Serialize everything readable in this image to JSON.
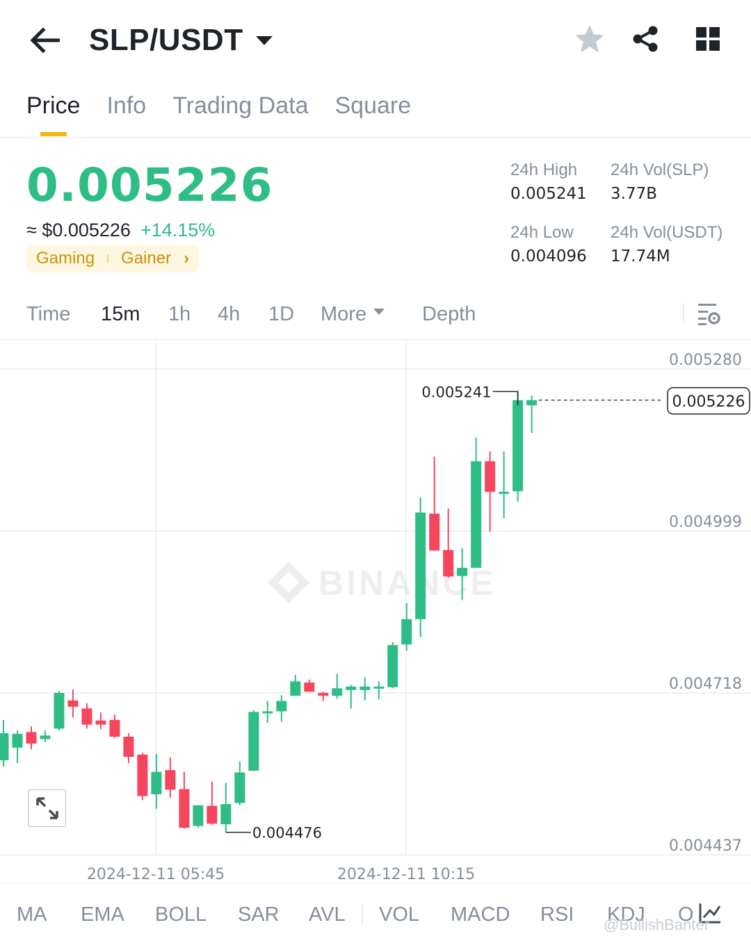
{
  "header": {
    "pair": "SLP/USDT",
    "icons": [
      "back-arrow-icon",
      "dropdown-caret-icon",
      "star-icon",
      "share-icon",
      "grid-icon"
    ]
  },
  "tabs": [
    {
      "label": "Price",
      "active": true
    },
    {
      "label": "Info",
      "active": false
    },
    {
      "label": "Trading Data",
      "active": false
    },
    {
      "label": "Square",
      "active": false
    }
  ],
  "price": {
    "last": "0.005226",
    "approx": "≈ $0.005226",
    "change": "+14.15%",
    "tags": [
      "Gaming",
      "Gainer"
    ]
  },
  "stats": {
    "high_label": "24h High",
    "high": "0.005241",
    "low_label": "24h Low",
    "low": "0.004096",
    "vol_base_label": "24h Vol(SLP)",
    "vol_base": "3.77B",
    "vol_quote_label": "24h Vol(USDT)",
    "vol_quote": "17.74M"
  },
  "intervals": {
    "time": "Time",
    "m15": "15m",
    "h1": "1h",
    "h4": "4h",
    "d1": "1D",
    "more": "More",
    "depth": "Depth",
    "active": "15m"
  },
  "chart_data": {
    "type": "candlestick",
    "interval": "15m",
    "y_ticks": [
      "0.005280",
      "0.004999",
      "0.004718",
      "0.004437"
    ],
    "y_tick_values": [
      0.00528,
      0.004999,
      0.004718,
      0.004437
    ],
    "x_ticks": [
      "2024-12-11 05:45",
      "2024-12-11 10:15"
    ],
    "ylim": [
      0.00438,
      0.0053
    ],
    "current_price": "0.005226",
    "high_marker": "0.005241",
    "low_marker": "0.004476",
    "watermark": "BINANCE",
    "candles": [
      {
        "o": 0.004601,
        "c": 0.004648,
        "h": 0.004671,
        "l": 0.00459
      },
      {
        "o": 0.004623,
        "c": 0.004647,
        "h": 0.004653,
        "l": 0.004596
      },
      {
        "o": 0.00465,
        "c": 0.00463,
        "h": 0.00466,
        "l": 0.00462
      },
      {
        "o": 0.004638,
        "c": 0.004644,
        "h": 0.004653,
        "l": 0.004633
      },
      {
        "o": 0.004656,
        "c": 0.004718,
        "h": 0.004721,
        "l": 0.004653
      },
      {
        "o": 0.004705,
        "c": 0.004694,
        "h": 0.004724,
        "l": 0.004675
      },
      {
        "o": 0.004691,
        "c": 0.004663,
        "h": 0.0047,
        "l": 0.004656
      },
      {
        "o": 0.00467,
        "c": 0.004663,
        "h": 0.004684,
        "l": 0.004655
      },
      {
        "o": 0.004671,
        "c": 0.004642,
        "h": 0.00468,
        "l": 0.00464
      },
      {
        "o": 0.004642,
        "c": 0.004607,
        "h": 0.004648,
        "l": 0.004596
      },
      {
        "o": 0.004611,
        "c": 0.004539,
        "h": 0.004614,
        "l": 0.004532
      },
      {
        "o": 0.004542,
        "c": 0.004581,
        "h": 0.004612,
        "l": 0.004517
      },
      {
        "o": 0.004584,
        "c": 0.00455,
        "h": 0.004606,
        "l": 0.004536
      },
      {
        "o": 0.004551,
        "c": 0.004484,
        "h": 0.004581,
        "l": 0.004482
      },
      {
        "o": 0.004487,
        "c": 0.004523,
        "h": 0.004523,
        "l": 0.004484
      },
      {
        "o": 0.004522,
        "c": 0.004491,
        "h": 0.004564,
        "l": 0.004489
      },
      {
        "o": 0.00449,
        "c": 0.004525,
        "h": 0.004562,
        "l": 0.004476
      },
      {
        "o": 0.004527,
        "c": 0.00458,
        "h": 0.004599,
        "l": 0.004523
      },
      {
        "o": 0.004583,
        "c": 0.004685,
        "h": 0.004688,
        "l": 0.004583
      },
      {
        "o": 0.004683,
        "c": 0.004686,
        "h": 0.004704,
        "l": 0.004666
      },
      {
        "o": 0.004686,
        "c": 0.004704,
        "h": 0.004714,
        "l": 0.004668
      },
      {
        "o": 0.004713,
        "c": 0.004738,
        "h": 0.004749,
        "l": 0.004713
      },
      {
        "o": 0.004736,
        "c": 0.00472,
        "h": 0.004741,
        "l": 0.00472
      },
      {
        "o": 0.004718,
        "c": 0.004713,
        "h": 0.00472,
        "l": 0.004704
      },
      {
        "o": 0.004713,
        "c": 0.004726,
        "h": 0.004751,
        "l": 0.004708
      },
      {
        "o": 0.004723,
        "c": 0.004729,
        "h": 0.004732,
        "l": 0.004691
      },
      {
        "o": 0.004723,
        "c": 0.004729,
        "h": 0.004745,
        "l": 0.004705
      },
      {
        "o": 0.004726,
        "c": 0.004729,
        "h": 0.004738,
        "l": 0.004707
      },
      {
        "o": 0.004728,
        "c": 0.004801,
        "h": 0.004806,
        "l": 0.004726
      },
      {
        "o": 0.004802,
        "c": 0.004846,
        "h": 0.004874,
        "l": 0.004791
      },
      {
        "o": 0.004846,
        "c": 0.005031,
        "h": 0.005057,
        "l": 0.004815
      },
      {
        "o": 0.005029,
        "c": 0.004965,
        "h": 0.005128,
        "l": 0.004965
      },
      {
        "o": 0.004966,
        "c": 0.00492,
        "h": 0.005038,
        "l": 0.004918
      },
      {
        "o": 0.004921,
        "c": 0.004935,
        "h": 0.004969,
        "l": 0.004879
      },
      {
        "o": 0.004935,
        "c": 0.00512,
        "h": 0.005161,
        "l": 0.004935
      },
      {
        "o": 0.00512,
        "c": 0.005067,
        "h": 0.005137,
        "l": 0.004998
      },
      {
        "o": 0.005067,
        "c": 0.005067,
        "h": 0.005137,
        "l": 0.005021
      },
      {
        "o": 0.005068,
        "c": 0.005226,
        "h": 0.005241,
        "l": 0.00505
      },
      {
        "o": 0.005217,
        "c": 0.005226,
        "h": 0.005234,
        "l": 0.005169
      }
    ]
  },
  "indicators": [
    "MA",
    "EMA",
    "BOLL",
    "SAR",
    "AVL",
    "VOL",
    "MACD",
    "RSI",
    "KDJ",
    "O"
  ],
  "credit": "@BullishBanter",
  "colors": {
    "up": "#2ebd85",
    "down": "#f6465d",
    "accent": "#f0b90b",
    "muted": "#848e9c"
  }
}
